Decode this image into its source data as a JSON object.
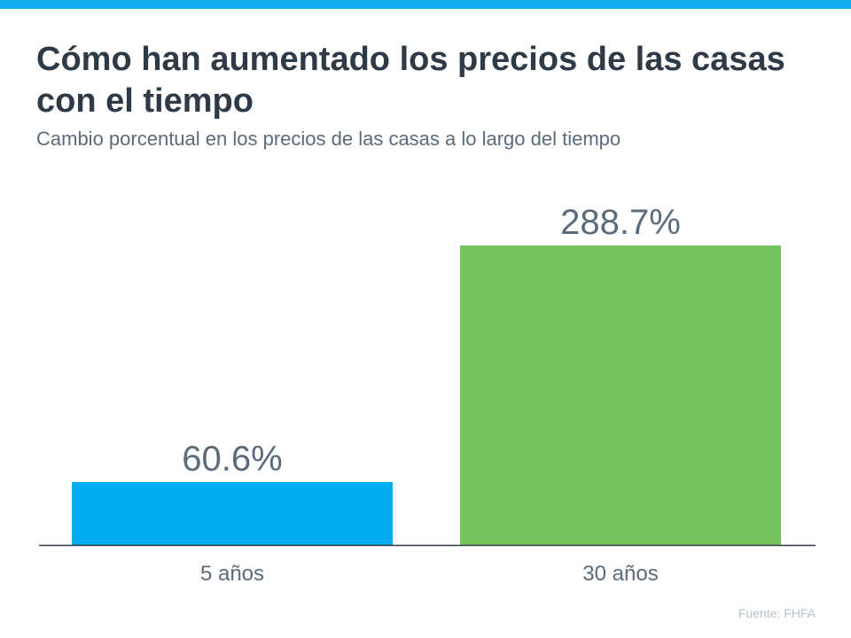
{
  "chart_data": {
    "type": "bar",
    "title": "Cómo han aumentado los precios de las casas con el tiempo",
    "subtitle": "Cambio porcentual en los precios de las casas a lo largo del tiempo",
    "categories": [
      "5 años",
      "30 años"
    ],
    "values": [
      60.6,
      288.7
    ],
    "data_labels": [
      "60.6%",
      "288.7%"
    ],
    "colors": [
      "#00adef",
      "#74c35a"
    ],
    "xlabel": "",
    "ylabel": "",
    "ylim": [
      0,
      288.7
    ],
    "grid": false,
    "source": "Fuente:  FHFA"
  },
  "accent_color": "#14aef0"
}
